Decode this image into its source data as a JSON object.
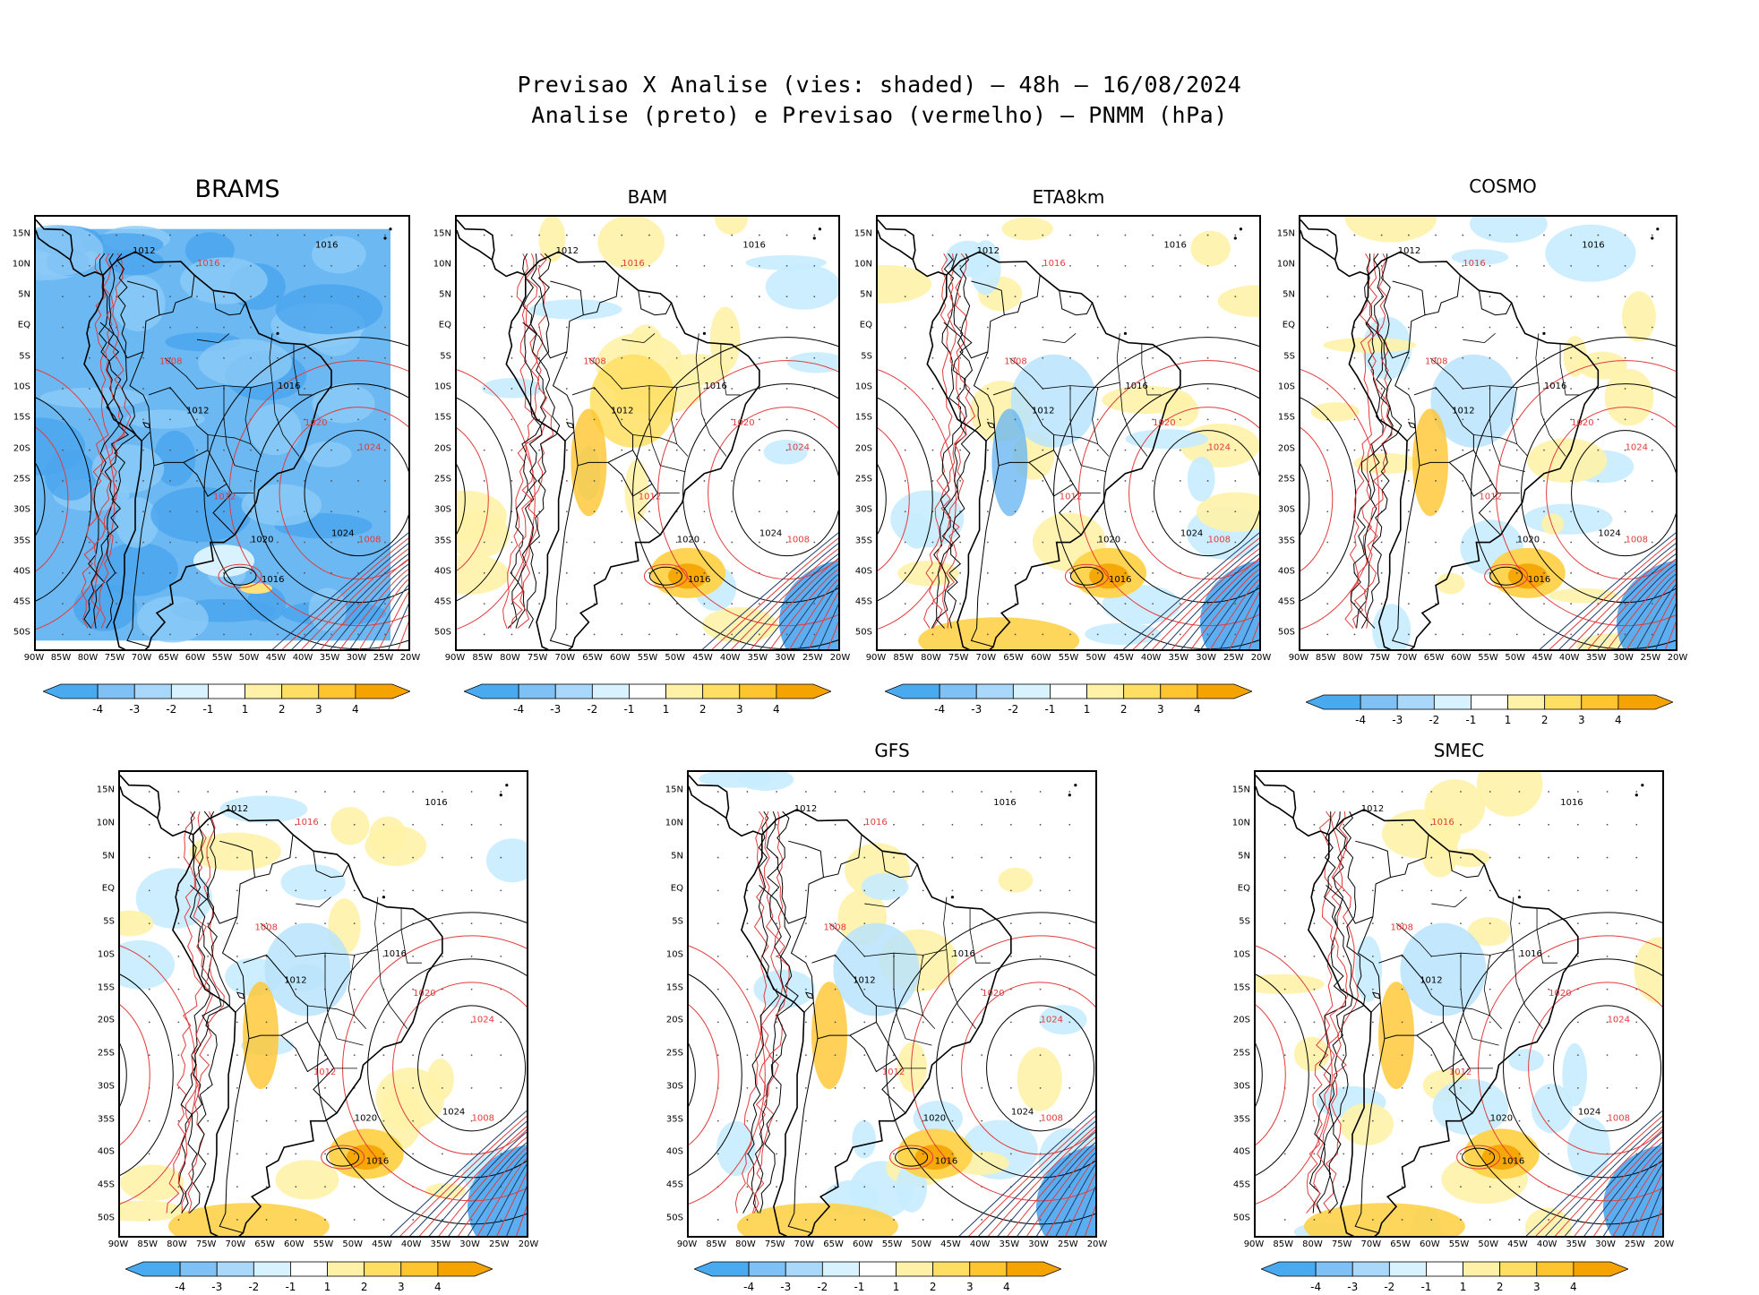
{
  "title": {
    "line1": "Previsao X Analise (vies: shaded) – 48h – 16/08/2024",
    "line2": "Analise (preto) e Previsao (vermelho) – PNMM (hPa)"
  },
  "lat_ticks": [
    "15N",
    "10N",
    "5N",
    "EQ",
    "5S",
    "10S",
    "15S",
    "20S",
    "25S",
    "30S",
    "35S",
    "40S",
    "45S",
    "50S"
  ],
  "lon_ticks": [
    "90W",
    "85W",
    "80W",
    "75W",
    "70W",
    "65W",
    "60W",
    "55W",
    "50W",
    "45W",
    "40W",
    "35W",
    "30W",
    "25W",
    "20W"
  ],
  "colorbar": {
    "labels": [
      "-4",
      "-3",
      "-2",
      "-1",
      "1",
      "2",
      "3",
      "4"
    ],
    "colors": [
      "#4aaaf0",
      "#7fc0f5",
      "#a9d8fb",
      "#d8f3ff",
      "#ffffff",
      "#fff2a8",
      "#ffdf63",
      "#ffc52e",
      "#f5a300"
    ]
  },
  "panels": [
    {
      "label": "BRAMS",
      "bias": "negative"
    },
    {
      "label": "BAM",
      "bias": "mixed"
    },
    {
      "label": "ETA8km",
      "bias": "mixed"
    },
    {
      "label": "COSMO",
      "bias": "mixed"
    },
    {
      "label": "",
      "bias": "mixed"
    },
    {
      "label": "GFS",
      "bias": "mixed"
    },
    {
      "label": "SMEC",
      "bias": "mixed"
    }
  ],
  "contour_labels": {
    "black": [
      "1012",
      "1016",
      "1020",
      "1024"
    ],
    "red": [
      "1008",
      "1012",
      "1016",
      "1020",
      "1024"
    ]
  },
  "colors": {
    "analysis_contour": "#000000",
    "forecast_contour": "#e23b3b",
    "negative_bias": "#6bb8f2",
    "positive_bias": "#ffd24a"
  }
}
